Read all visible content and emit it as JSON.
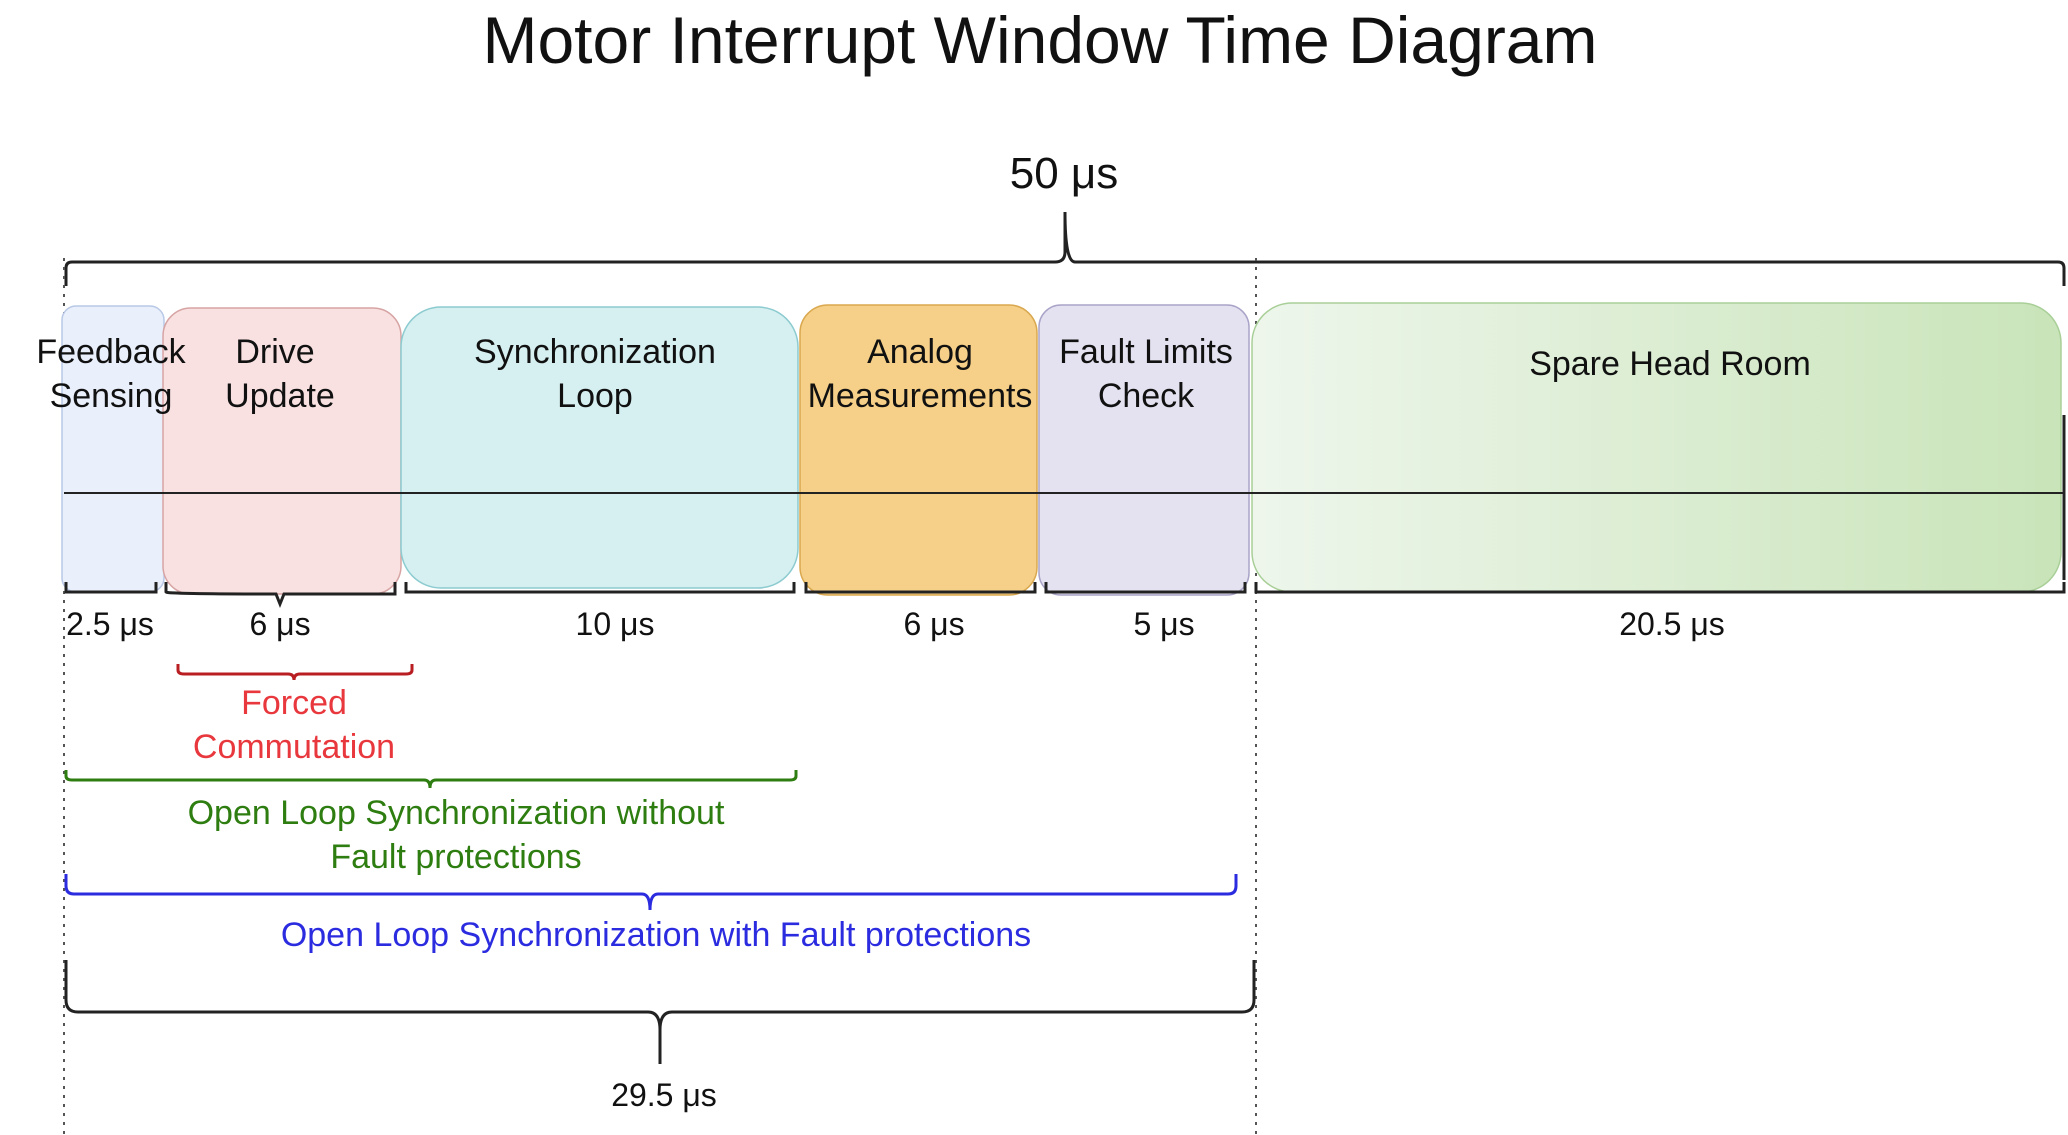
{
  "title": "Motor Interrupt Window Time Diagram",
  "total_duration": "50 μs",
  "blocks": [
    {
      "id": "feedback",
      "lines": [
        "Feedback",
        "Sensing"
      ],
      "duration": "2.5 μs",
      "fill": "#e9effb",
      "stroke": "#b8c8e6"
    },
    {
      "id": "drive",
      "lines": [
        "Drive",
        "Update"
      ],
      "duration": "6 μs",
      "fill": "#f9e1e1",
      "stroke": "#d7a4a4"
    },
    {
      "id": "sync",
      "lines": [
        "Synchronization",
        "Loop"
      ],
      "duration": "10 μs",
      "fill": "#d6eff0",
      "stroke": "#8ccbd0"
    },
    {
      "id": "analog",
      "lines": [
        "Analog",
        "Measurements"
      ],
      "duration": "6 μs",
      "fill": "#f6d088",
      "stroke": "#d9a84f"
    },
    {
      "id": "fault",
      "lines": [
        "Fault Limits",
        "Check"
      ],
      "duration": "5 μs",
      "fill": "#e4e2f0",
      "stroke": "#a9a4c8"
    },
    {
      "id": "spare",
      "lines": [
        "Spare Head Room"
      ],
      "duration": "20.5 μs",
      "fill_from": "#eef6ec",
      "fill_to": "#c9e4b9",
      "stroke": "#a9cf98"
    }
  ],
  "spans": [
    {
      "id": "forced",
      "lines": [
        "Forced",
        "Commutation"
      ],
      "color": "#e8383d"
    },
    {
      "id": "open-loop-without",
      "lines": [
        "Open Loop Synchronization without",
        "Fault protections"
      ],
      "color": "#2e7d10"
    },
    {
      "id": "open-loop-with",
      "lines": [
        "Open Loop Synchronization with Fault protections"
      ],
      "color": "#2b2be0"
    }
  ],
  "active_duration": "29.5 μs",
  "colors": {
    "text": "#111111",
    "line": "#222222"
  }
}
